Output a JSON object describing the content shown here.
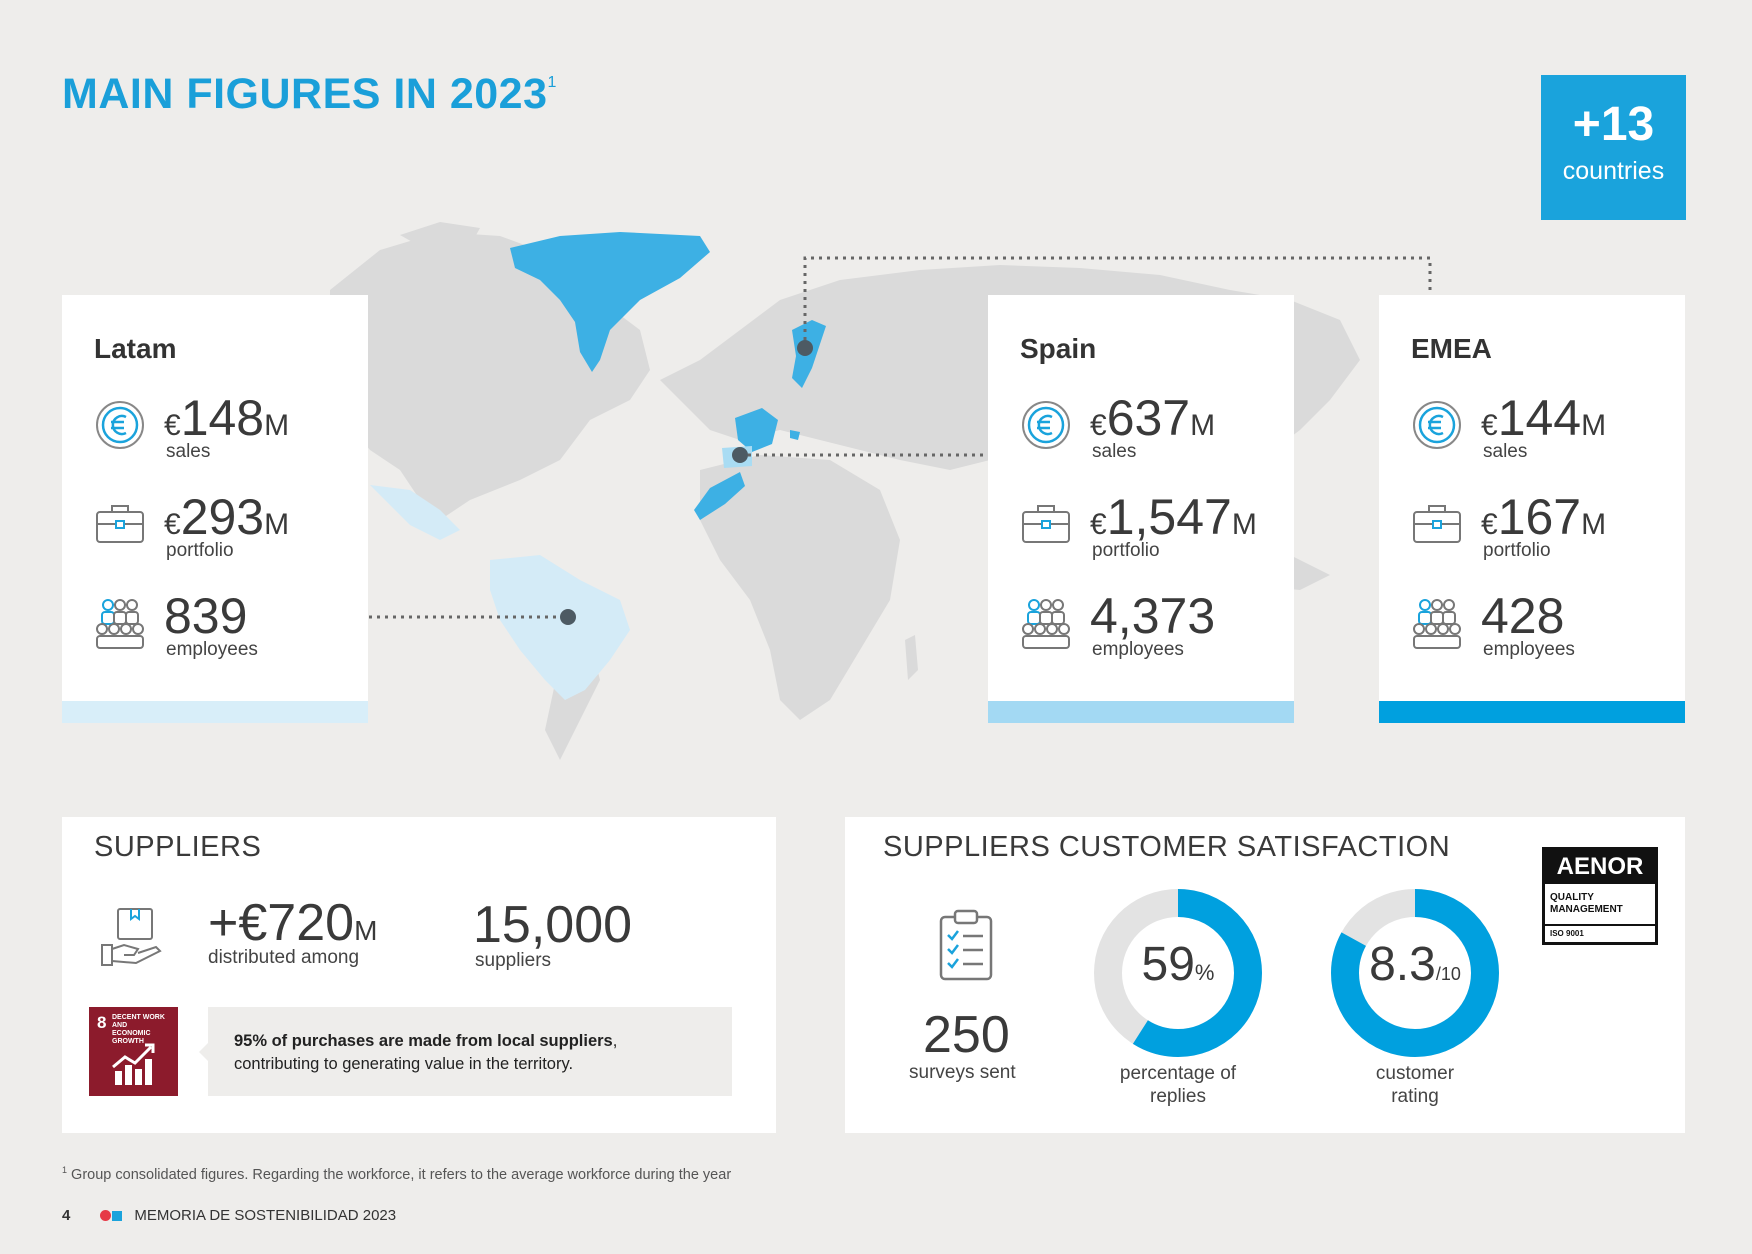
{
  "title": {
    "text": "MAIN FIGURES IN 2023",
    "sup": "1"
  },
  "countries_badge": {
    "value": "+13",
    "label": "countries"
  },
  "colors": {
    "accent": "#1aa3dc",
    "latam_bar": "#d8eef9",
    "spain_bar": "#a3d9f3",
    "emea_bar": "#00a0df",
    "sdg": "#8c1b2c"
  },
  "regions": [
    {
      "name": "Latam",
      "sales": "148",
      "portfolio": "293",
      "employees": "839"
    },
    {
      "name": "Spain",
      "sales": "637",
      "portfolio": "1,547",
      "employees": "4,373"
    },
    {
      "name": "EMEA",
      "sales": "144",
      "portfolio": "167",
      "employees": "428"
    }
  ],
  "metric_labels": {
    "currency": "€",
    "unit": "M",
    "sales": "sales",
    "portfolio": "portfolio",
    "employees": "employees"
  },
  "icons": {
    "sales": "euro-coin-icon",
    "portfolio": "briefcase-icon",
    "employees": "people-group-icon"
  },
  "suppliers": {
    "title": "SUPPLIERS",
    "amount_prefix": "+€",
    "amount": "720",
    "amount_unit": "M",
    "amount_label": "distributed among",
    "count": "15,000",
    "count_label": "suppliers",
    "sdg_badge": {
      "number": "8",
      "line1": "DECENT WORK AND",
      "line2": "ECONOMIC GROWTH"
    },
    "note_bold": "95% of purchases are made from local suppliers",
    "note_rest": ",",
    "note_line2": "contributing to generating value in the territory."
  },
  "satisfaction": {
    "title": "SUPPLIERS CUSTOMER SATISFACTION",
    "surveys_value": "250",
    "surveys_label": "surveys sent",
    "replies_value": "59",
    "replies_unit": "%",
    "replies_fraction": 0.59,
    "replies_label_1": "percentage of",
    "replies_label_2": "replies",
    "rating_value": "8.3",
    "rating_unit": "/10",
    "rating_fraction": 0.83,
    "rating_label_1": "customer",
    "rating_label_2": "rating",
    "aenor": {
      "brand": "AENOR",
      "line1": "QUALITY",
      "line2": "MANAGEMENT",
      "line3": "ISO 9001"
    }
  },
  "footnote": {
    "sup": "1",
    "text": "Group consolidated figures. Regarding the workforce, it refers to the average workforce during the year"
  },
  "footer": {
    "page": "4",
    "text": "MEMORIA DE SOSTENIBILIDAD 2023"
  }
}
